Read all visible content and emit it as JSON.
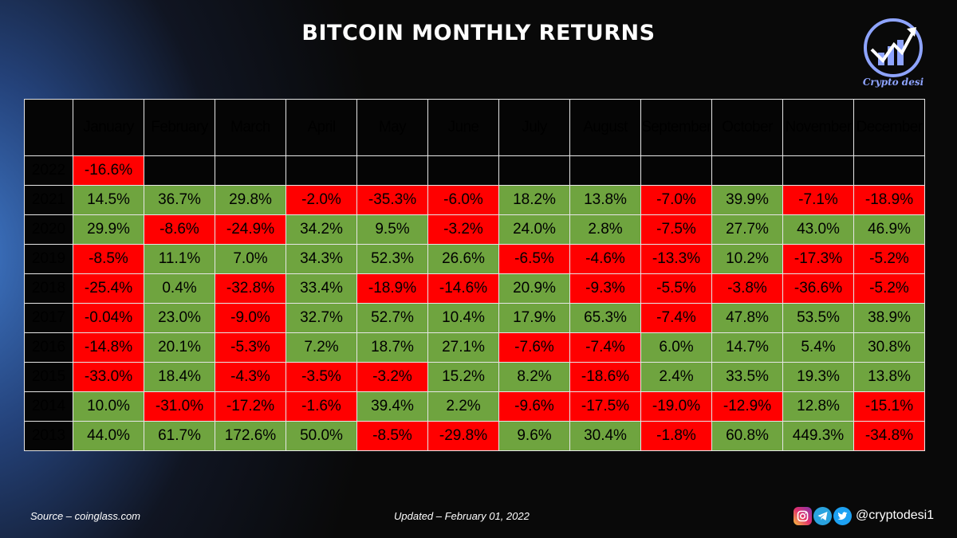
{
  "title": "BITCOIN MONTHLY RETURNS",
  "logo_text": "Crypto desi",
  "footer": {
    "source": "Source – coinglass.com",
    "updated": "Updated – February 01, 2022",
    "handle": "@cryptodesi1"
  },
  "icons": [
    "instagram-icon",
    "telegram-icon",
    "twitter-icon"
  ],
  "colors": {
    "positive": "#6fa43f",
    "negative": "#ff0000",
    "background": "#050505"
  },
  "chart_data": {
    "type": "table",
    "title": "BITCOIN MONTHLY RETURNS",
    "columns": [
      "January",
      "February",
      "March",
      "April",
      "May",
      "June",
      "July",
      "August",
      "September",
      "October",
      "November",
      "December"
    ],
    "rows": [
      {
        "year": "2022",
        "values": [
          "-16.6%",
          "",
          "",
          "",
          "",
          "",
          "",
          "",
          "",
          "",
          "",
          ""
        ]
      },
      {
        "year": "2021",
        "values": [
          "14.5%",
          "36.7%",
          "29.8%",
          "-2.0%",
          "-35.3%",
          "-6.0%",
          "18.2%",
          "13.8%",
          "-7.0%",
          "39.9%",
          "-7.1%",
          "-18.9%"
        ]
      },
      {
        "year": "2020",
        "values": [
          "29.9%",
          "-8.6%",
          "-24.9%",
          "34.2%",
          "9.5%",
          "-3.2%",
          "24.0%",
          "2.8%",
          "-7.5%",
          "27.7%",
          "43.0%",
          "46.9%"
        ]
      },
      {
        "year": "2019",
        "values": [
          "-8.5%",
          "11.1%",
          "7.0%",
          "34.3%",
          "52.3%",
          "26.6%",
          "-6.5%",
          "-4.6%",
          "-13.3%",
          "10.2%",
          "-17.3%",
          "-5.2%"
        ]
      },
      {
        "year": "2018",
        "values": [
          "-25.4%",
          "0.4%",
          "-32.8%",
          "33.4%",
          "-18.9%",
          "-14.6%",
          "20.9%",
          "-9.3%",
          "-5.5%",
          "-3.8%",
          "-36.6%",
          "-5.2%"
        ]
      },
      {
        "year": "2017",
        "values": [
          "-0.04%",
          "23.0%",
          "-9.0%",
          "32.7%",
          "52.7%",
          "10.4%",
          "17.9%",
          "65.3%",
          "-7.4%",
          "47.8%",
          "53.5%",
          "38.9%"
        ]
      },
      {
        "year": "2016",
        "values": [
          "-14.8%",
          "20.1%",
          "-5.3%",
          "7.2%",
          "18.7%",
          "27.1%",
          "-7.6%",
          "-7.4%",
          "6.0%",
          "14.7%",
          "5.4%",
          "30.8%"
        ]
      },
      {
        "year": "2015",
        "values": [
          "-33.0%",
          "18.4%",
          "-4.3%",
          "-3.5%",
          "-3.2%",
          "15.2%",
          "8.2%",
          "-18.6%",
          "2.4%",
          "33.5%",
          "19.3%",
          "13.8%"
        ]
      },
      {
        "year": "2014",
        "values": [
          "10.0%",
          "-31.0%",
          "-17.2%",
          "-1.6%",
          "39.4%",
          "2.2%",
          "-9.6%",
          "-17.5%",
          "-19.0%",
          "-12.9%",
          "12.8%",
          "-15.1%"
        ]
      },
      {
        "year": "2013",
        "values": [
          "44.0%",
          "61.7%",
          "172.6%",
          "50.0%",
          "-8.5%",
          "-29.8%",
          "9.6%",
          "30.4%",
          "-1.8%",
          "60.8%",
          "449.3%",
          "-34.8%"
        ]
      }
    ]
  }
}
